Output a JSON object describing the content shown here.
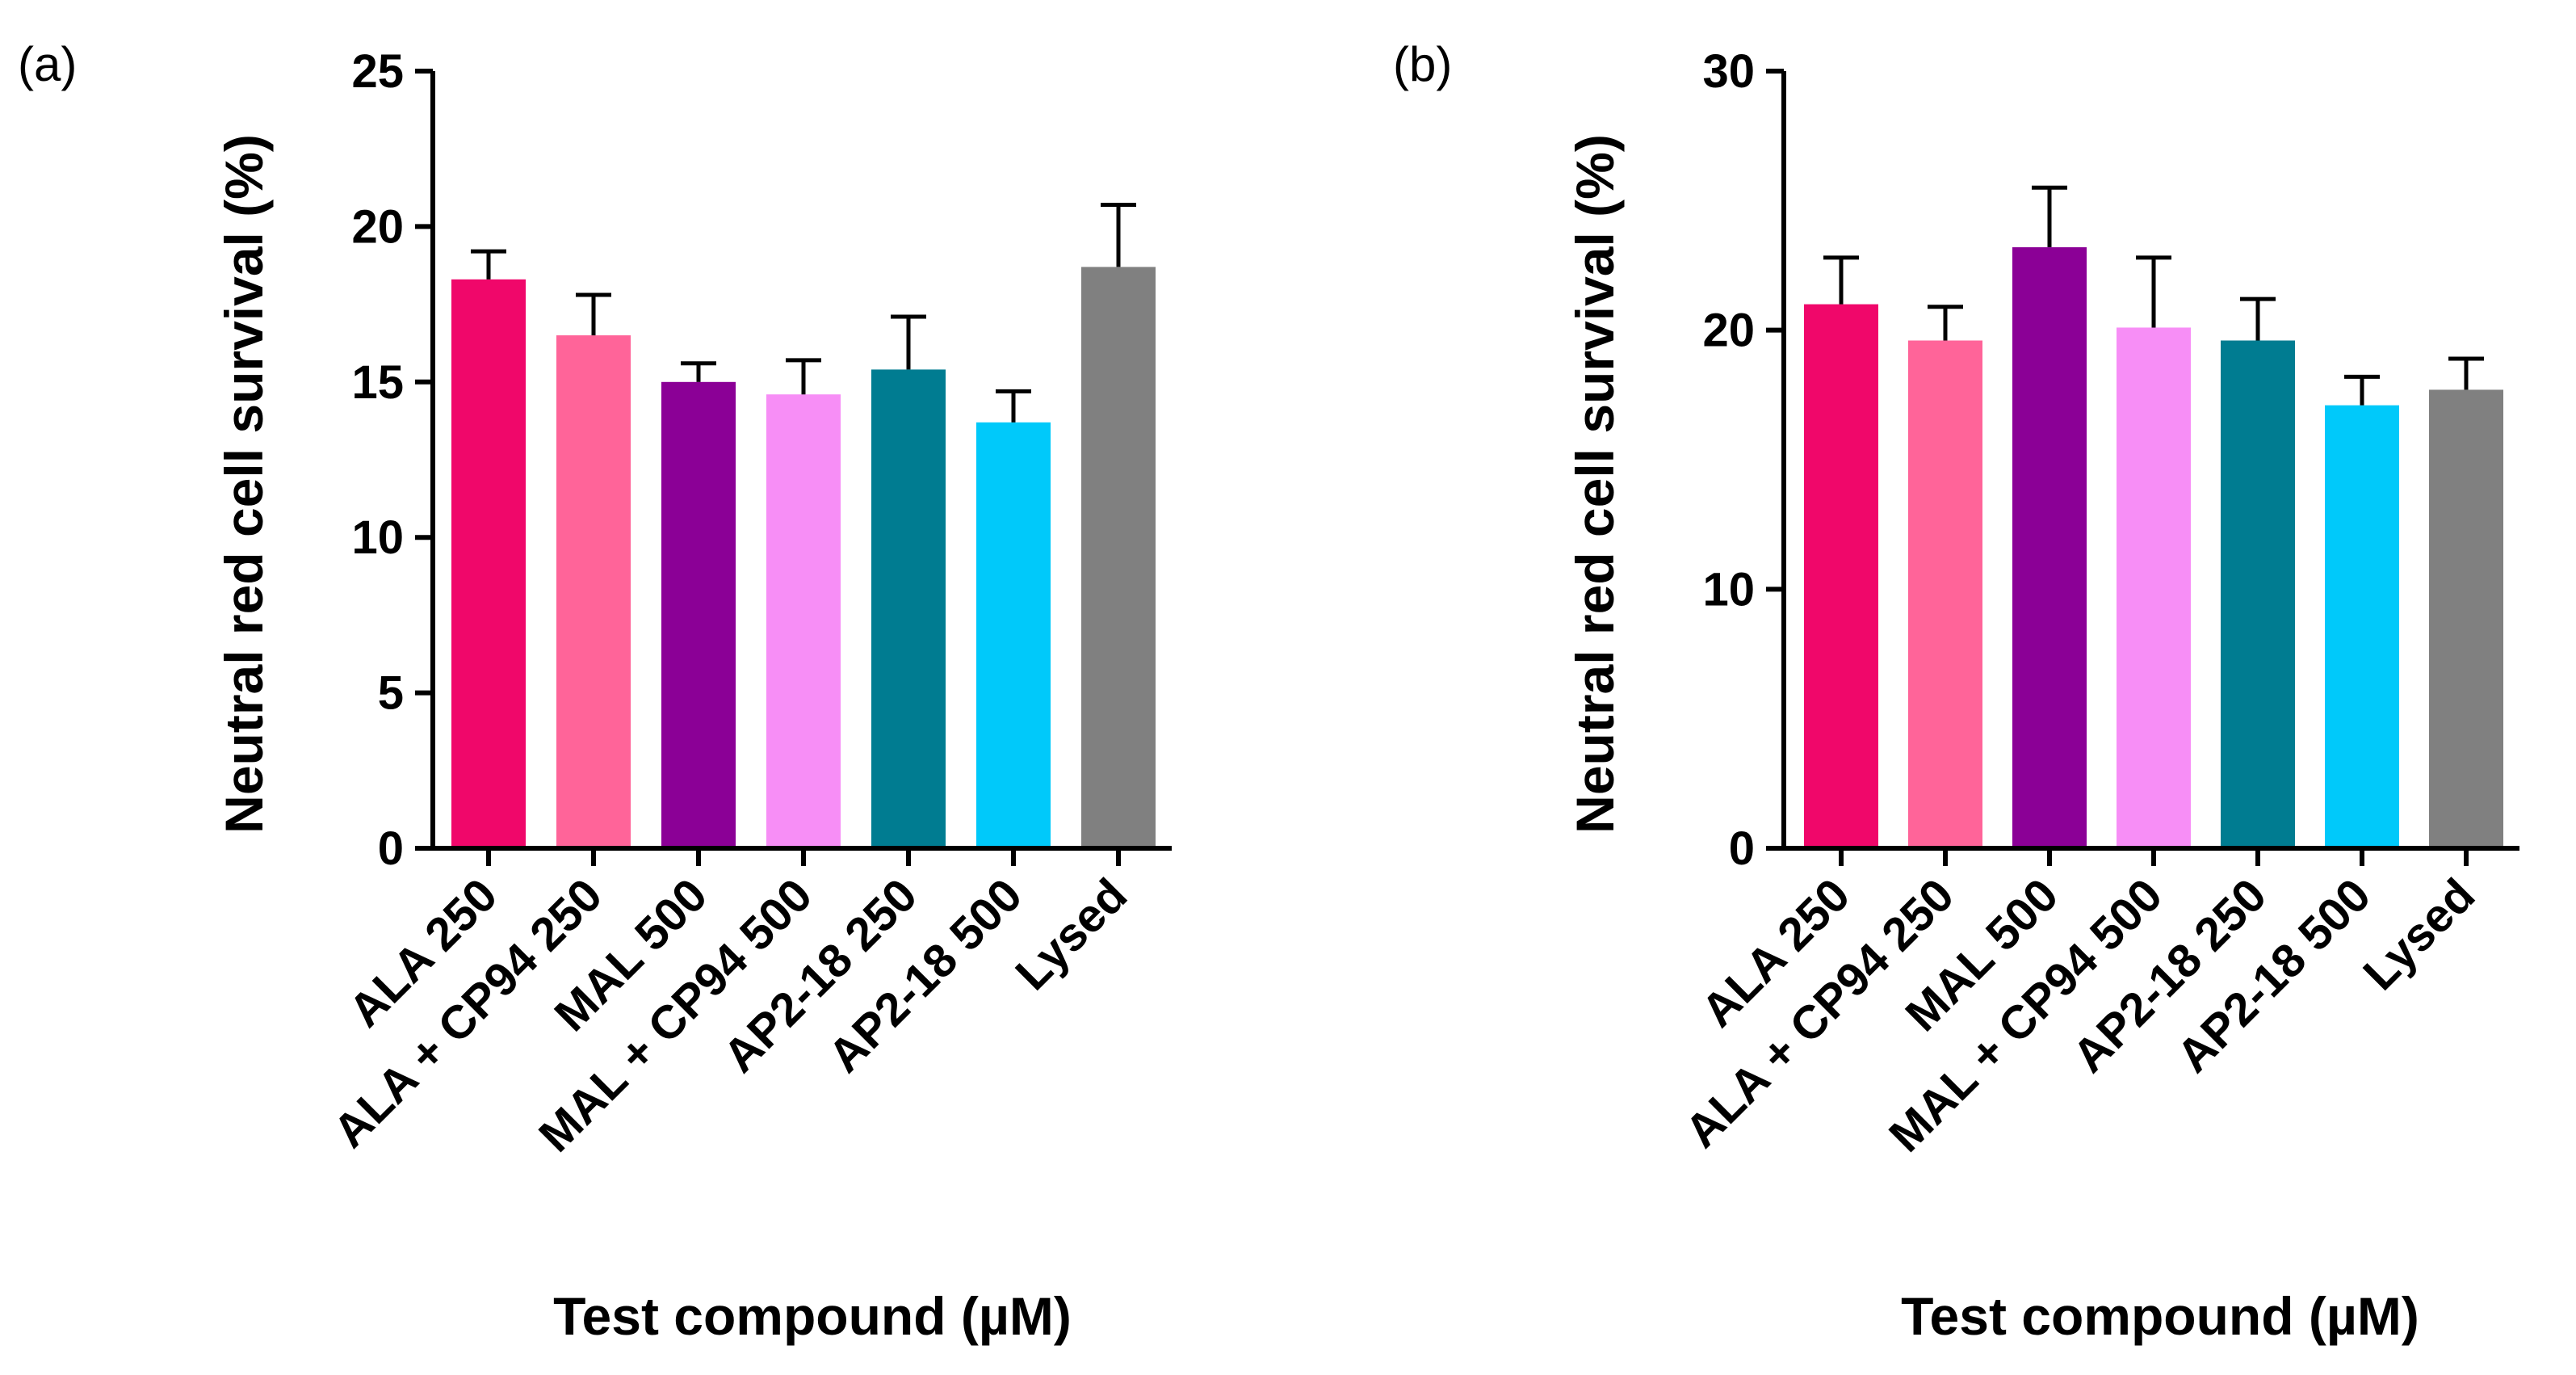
{
  "chart_data": [
    {
      "type": "bar",
      "panel_label": "(a)",
      "categories": [
        "ALA 250",
        "ALA + CP94 250",
        "MAL 500",
        "MAL + CP94 500",
        "AP2-18 250",
        "AP2-18 500",
        "Lysed"
      ],
      "values": [
        18.3,
        16.5,
        15.0,
        14.6,
        15.4,
        13.7,
        18.7
      ],
      "error_upper": [
        0.9,
        1.3,
        0.6,
        1.1,
        1.7,
        1.0,
        2.0
      ],
      "ylim": [
        0,
        25
      ],
      "yticks": [
        0,
        5,
        10,
        15,
        20,
        25
      ],
      "xlabel": "Test compound (µM)",
      "ylabel": "Neutral red cell survival (%)",
      "colors": [
        "#f0076a",
        "#ff6499",
        "#8b0096",
        "#f78ef6",
        "#007c91",
        "#00c9fa",
        "#808080"
      ],
      "grid": false,
      "legend": "none"
    },
    {
      "type": "bar",
      "panel_label": "(b)",
      "categories": [
        "ALA 250",
        "ALA + CP94 250",
        "MAL 500",
        "MAL + CP94 500",
        "AP2-18 250",
        "AP2-18 500",
        "Lysed"
      ],
      "values": [
        21.0,
        19.6,
        23.2,
        20.1,
        19.6,
        17.1,
        17.7
      ],
      "error_upper": [
        1.8,
        1.3,
        2.3,
        2.7,
        1.6,
        1.1,
        1.2
      ],
      "ylim": [
        0,
        30
      ],
      "yticks": [
        0,
        10,
        20,
        30
      ],
      "xlabel": "Test compound (µM)",
      "ylabel": "Neutral red cell survival (%)",
      "colors": [
        "#f0076a",
        "#ff6499",
        "#8b0096",
        "#f78ef6",
        "#007c91",
        "#00c9fa",
        "#808080"
      ],
      "grid": false,
      "legend": "none"
    }
  ]
}
